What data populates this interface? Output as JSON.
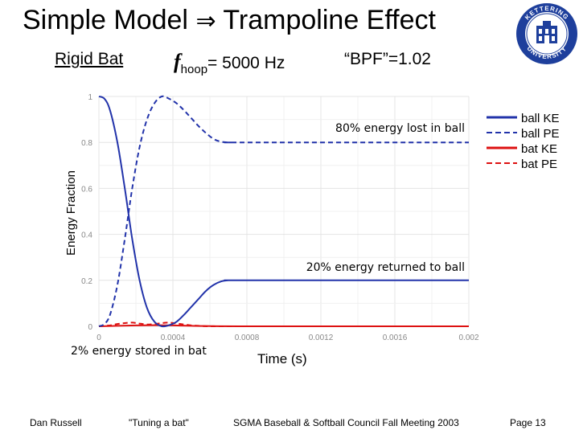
{
  "slide": {
    "title_left": "Simple Model",
    "title_arrow": "⇒",
    "title_right": "Trampoline Effect",
    "rigid_bat": "Rigid Bat",
    "fhoop_f": "f",
    "fhoop_sub": "hoop",
    "fhoop_value": "= 5000 Hz",
    "bpf": "“BPF”=1.02",
    "logo_text_top": "KETTERING",
    "logo_text_bottom": "UNIVERSITY"
  },
  "footer": {
    "author": "Dan Russell",
    "talk": "\"Tuning a bat\"",
    "meeting": "SGMA Baseball & Softball Council Fall Meeting 2003",
    "page": "Page 13"
  },
  "colors": {
    "blue": "#2233aa",
    "red": "#dd1111",
    "grid": "#e4e4e4",
    "tick": "#888888"
  },
  "chart_data": {
    "type": "line",
    "xlabel": "Time (s)",
    "ylabel": "Energy Fraction",
    "xlim": [
      0,
      0.002
    ],
    "ylim": [
      0,
      1
    ],
    "x_ticks": [
      0,
      0.0004,
      0.0008,
      0.0012,
      0.0016,
      0.002
    ],
    "x_tick_labels": [
      "0",
      "0.0004",
      "0.0008",
      "0.0012",
      "0.0016",
      "0.002"
    ],
    "y_ticks": [
      0,
      0.2,
      0.4,
      0.6,
      0.8,
      1
    ],
    "y_tick_labels": [
      "0",
      "0.2",
      "0.4",
      "0.6",
      "0.8",
      "1"
    ],
    "grid": true,
    "series": [
      {
        "name": "ball KE",
        "color": "#2233aa",
        "dash": false,
        "x": [
          0,
          3e-05,
          6e-05,
          0.0001,
          0.00014,
          0.00018,
          0.00022,
          0.00026,
          0.0003,
          0.00034,
          0.00038,
          0.00042,
          0.00046,
          0.0005,
          0.00054,
          0.00058,
          0.00062,
          0.00066,
          0.0007,
          0.00074,
          0.00078,
          0.002
        ],
        "y": [
          1,
          0.99,
          0.94,
          0.8,
          0.6,
          0.38,
          0.2,
          0.08,
          0.02,
          0,
          0.005,
          0.02,
          0.05,
          0.085,
          0.12,
          0.155,
          0.18,
          0.195,
          0.2,
          0.2,
          0.2,
          0.2
        ]
      },
      {
        "name": "ball PE",
        "color": "#2233aa",
        "dash": true,
        "x": [
          0,
          3e-05,
          6e-05,
          0.0001,
          0.00014,
          0.00018,
          0.00022,
          0.00026,
          0.0003,
          0.00034,
          0.00038,
          0.00042,
          0.00046,
          0.0005,
          0.00054,
          0.00058,
          0.00062,
          0.00066,
          0.0007,
          0.00074,
          0.00078,
          0.002
        ],
        "y": [
          0,
          0.01,
          0.05,
          0.18,
          0.38,
          0.6,
          0.78,
          0.9,
          0.97,
          1.0,
          0.99,
          0.97,
          0.94,
          0.905,
          0.87,
          0.84,
          0.815,
          0.803,
          0.8,
          0.8,
          0.8,
          0.8
        ]
      },
      {
        "name": "bat KE",
        "color": "#dd1111",
        "dash": false,
        "x": [
          0,
          0.0001,
          0.0002,
          0.0003,
          0.0004,
          0.0005,
          0.0006,
          0.0008,
          0.002
        ],
        "y": [
          0,
          0.002,
          0.004,
          0.005,
          0.004,
          0.002,
          0.001,
          0,
          0
        ]
      },
      {
        "name": "bat PE",
        "color": "#dd1111",
        "dash": true,
        "x": [
          0,
          6e-05,
          0.0001,
          0.00014,
          0.00018,
          0.00022,
          0.00026,
          0.0003,
          0.00034,
          0.00038,
          0.00042,
          0.00046,
          0.0005,
          0.00054,
          0.0006,
          0.0008
        ],
        "y": [
          0,
          0.004,
          0.01,
          0.014,
          0.016,
          0.012,
          0.008,
          0.01,
          0.014,
          0.016,
          0.012,
          0.008,
          0.004,
          0.002,
          0,
          0
        ]
      }
    ],
    "annotations": {
      "lost": "80% energy lost in ball",
      "returned": "20% energy returned to ball",
      "stored": "2% energy stored in bat"
    }
  }
}
